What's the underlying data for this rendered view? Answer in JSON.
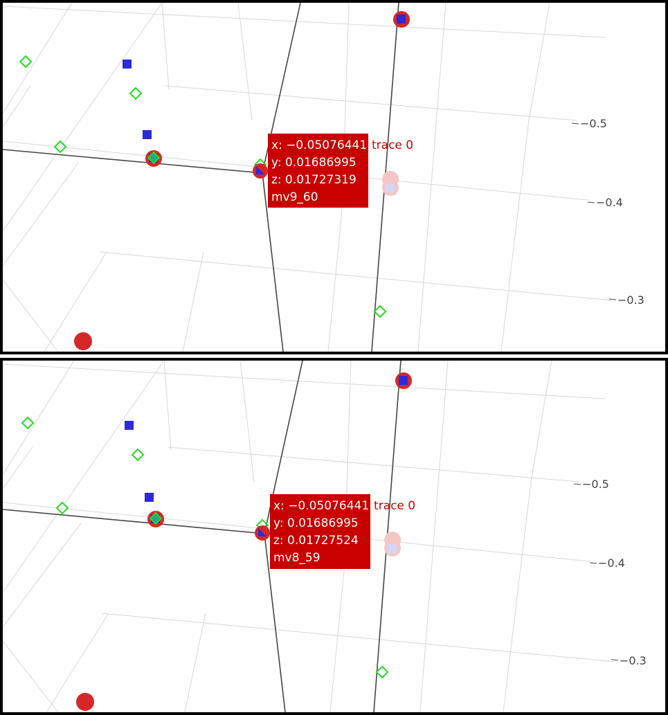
{
  "chart_data": [
    {
      "type": "scatter",
      "title": "",
      "projection": "3d",
      "axis_tick_labels": [
        "−0.5",
        "−0.4",
        "−0.3"
      ],
      "series": [
        {
          "marker": "circle",
          "color": "#d62728"
        },
        {
          "marker": "square",
          "color": "#2b2bd9"
        },
        {
          "marker": "diamond-open",
          "color": "#22dd22"
        }
      ],
      "hover": {
        "x_line": "x: −0.05076441",
        "y_line": "y: 0.01686995",
        "z_line": "z: 0.01727319",
        "label": "mv9_60",
        "trace": "trace 0",
        "x": -0.05076441,
        "y": 0.01686995,
        "z": 0.01727319
      }
    },
    {
      "type": "scatter",
      "title": "",
      "projection": "3d",
      "axis_tick_labels": [
        "−0.5",
        "−0.4",
        "−0.3"
      ],
      "series": [
        {
          "marker": "circle",
          "color": "#d62728"
        },
        {
          "marker": "square",
          "color": "#2b2bd9"
        },
        {
          "marker": "diamond-open",
          "color": "#22dd22"
        }
      ],
      "hover": {
        "x_line": "x: −0.05076441",
        "y_line": "y: 0.01686995",
        "z_line": "z: 0.01727524",
        "label": "mv8_59",
        "trace": "trace 0",
        "x": -0.05076441,
        "y": 0.01686995,
        "z": 0.01727524
      }
    }
  ],
  "colors": {
    "tooltip_bg": "#c80000",
    "marker_red": "#d62728",
    "marker_blue": "#2b2bd9",
    "marker_green": "#22dd22",
    "axis_line": "#444444",
    "grid_line": "#d0d0d0"
  }
}
